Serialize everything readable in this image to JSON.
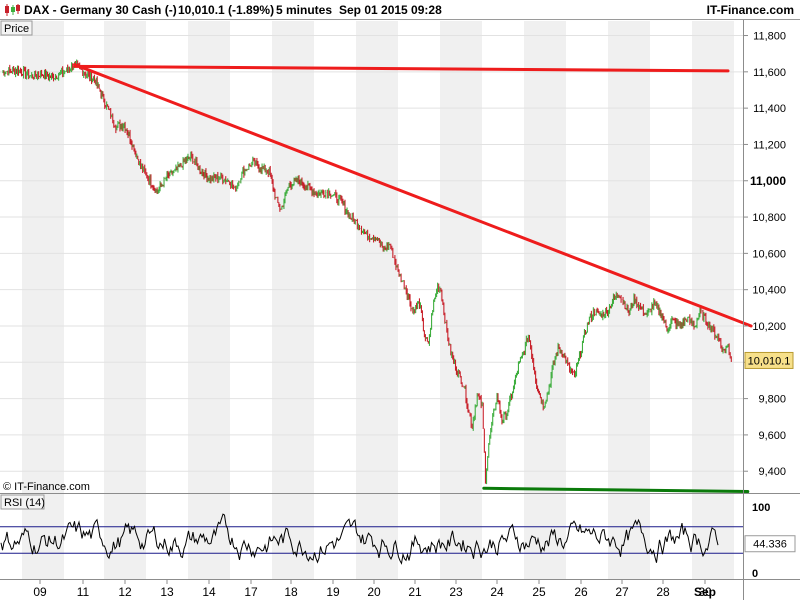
{
  "header": {
    "symbol": "DAX - Germany 30 Cash (-)",
    "price_change": "10,010.1 (-1.89%)",
    "interval": "5 minutes",
    "datetime": "Sep 01 2015 09:28",
    "brand": "IT-Finance.com"
  },
  "price_panel_label": "Price",
  "rsi_panel_label": "RSI (14)",
  "copyright": "© IT-Finance.com",
  "colors": {
    "up": "#3fae3f",
    "down": "#c8202a",
    "trendline": "#ee1c1c",
    "support": "#0a7a0a",
    "rsi_line": "#000000",
    "rsi_band": "#1a1a8a",
    "last_price_bg": "#f7e08a",
    "stripe": "#f0f0f0"
  },
  "chart_data": [
    {
      "type": "line",
      "panel": "price",
      "x_tick_labels": [
        "09",
        "11",
        "12",
        "13",
        "14",
        "17",
        "18",
        "19",
        "20",
        "21",
        "23",
        "24",
        "25",
        "26",
        "27",
        "28",
        "30",
        "Sep"
      ],
      "y_ticks": [
        9400,
        9600,
        9800,
        10000,
        10200,
        10400,
        10600,
        10800,
        11000,
        11200,
        11400,
        11600,
        11800
      ],
      "y_tick_labels": [
        "9,400",
        "9,600",
        "9,800",
        "10,000",
        "10,200",
        "10,400",
        "10,600",
        "10,800",
        "11,000",
        "11,200",
        "11,400",
        "11,600",
        "11,800"
      ],
      "bold_tick": "11,000",
      "ylim": [
        9280,
        11880
      ],
      "last_price": 10010.1,
      "last_price_label": "10,010.1",
      "price_path": [
        [
          0,
          11600
        ],
        [
          0.5,
          11610
        ],
        [
          0.9,
          11575
        ],
        [
          1.2,
          11590
        ],
        [
          1.5,
          11570
        ],
        [
          1.9,
          11600
        ],
        [
          2.2,
          11640
        ],
        [
          2.6,
          11580
        ],
        [
          2.8,
          11560
        ],
        [
          3.0,
          11480
        ],
        [
          3.2,
          11400
        ],
        [
          3.45,
          11300
        ],
        [
          3.7,
          11310
        ],
        [
          3.85,
          11250
        ],
        [
          4.0,
          11180
        ],
        [
          4.2,
          11080
        ],
        [
          4.45,
          11010
        ],
        [
          4.7,
          10940
        ],
        [
          5.0,
          11020
        ],
        [
          5.3,
          11060
        ],
        [
          5.55,
          11110
        ],
        [
          5.75,
          11130
        ],
        [
          6.0,
          11060
        ],
        [
          6.3,
          11010
        ],
        [
          6.6,
          11020
        ],
        [
          6.9,
          11000
        ],
        [
          7.05,
          10950
        ],
        [
          7.3,
          11050
        ],
        [
          7.6,
          11100
        ],
        [
          7.85,
          11070
        ],
        [
          8.1,
          11050
        ],
        [
          8.3,
          10900
        ],
        [
          8.45,
          10840
        ],
        [
          8.7,
          10980
        ],
        [
          9.0,
          11000
        ],
        [
          9.3,
          10960
        ],
        [
          9.55,
          10930
        ],
        [
          9.9,
          10940
        ],
        [
          10.3,
          10880
        ],
        [
          10.55,
          10800
        ],
        [
          10.8,
          10760
        ],
        [
          11.05,
          10700
        ],
        [
          11.35,
          10690
        ],
        [
          11.55,
          10620
        ],
        [
          11.75,
          10650
        ],
        [
          12.0,
          10500
        ],
        [
          12.25,
          10400
        ],
        [
          12.45,
          10280
        ],
        [
          12.65,
          10330
        ],
        [
          12.8,
          10150
        ],
        [
          12.92,
          10090
        ],
        [
          13.05,
          10300
        ],
        [
          13.2,
          10420
        ],
        [
          13.3,
          10400
        ],
        [
          13.45,
          10200
        ],
        [
          13.6,
          10050
        ],
        [
          13.8,
          9950
        ],
        [
          14.0,
          9870
        ],
        [
          14.15,
          9720
        ],
        [
          14.25,
          9650
        ],
        [
          14.4,
          9820
        ],
        [
          14.55,
          9760
        ],
        [
          14.65,
          9360
        ],
        [
          14.75,
          9550
        ],
        [
          14.9,
          9720
        ],
        [
          15.0,
          9820
        ],
        [
          15.15,
          9680
        ],
        [
          15.3,
          9720
        ],
        [
          15.5,
          9860
        ],
        [
          15.65,
          9980
        ],
        [
          15.8,
          10050
        ],
        [
          15.95,
          10150
        ],
        [
          16.05,
          10050
        ],
        [
          16.2,
          9880
        ],
        [
          16.4,
          9760
        ],
        [
          16.55,
          9840
        ],
        [
          16.7,
          9980
        ],
        [
          16.85,
          10080
        ],
        [
          17.0,
          10050
        ],
        [
          17.2,
          9960
        ],
        [
          17.35,
          9920
        ],
        [
          17.5,
          10030
        ],
        [
          17.65,
          10150
        ],
        [
          17.8,
          10240
        ],
        [
          17.95,
          10280
        ],
        [
          18.15,
          10260
        ],
        [
          18.35,
          10280
        ],
        [
          18.5,
          10340
        ],
        [
          18.7,
          10380
        ],
        [
          18.85,
          10330
        ],
        [
          19.0,
          10270
        ],
        [
          19.15,
          10350
        ],
        [
          19.35,
          10300
        ],
        [
          19.55,
          10260
        ],
        [
          19.75,
          10320
        ],
        [
          20.0,
          10260
        ],
        [
          20.15,
          10180
        ],
        [
          20.3,
          10230
        ],
        [
          20.55,
          10200
        ],
        [
          20.75,
          10240
        ],
        [
          21.0,
          10200
        ],
        [
          21.15,
          10280
        ],
        [
          21.3,
          10240
        ],
        [
          21.45,
          10200
        ],
        [
          21.6,
          10160
        ],
        [
          21.75,
          10120
        ],
        [
          21.85,
          10060
        ],
        [
          22.0,
          10090
        ],
        [
          22.1,
          10010
        ]
      ],
      "lines": [
        {
          "name": "resistance",
          "points": [
            [
              2.2,
              11630
            ],
            [
              22.0,
              11605
            ]
          ],
          "color": "trendline"
        },
        {
          "name": "down-trend",
          "points": [
            [
              2.2,
              11640
            ],
            [
              22.7,
              10200
            ]
          ],
          "color": "trendline"
        },
        {
          "name": "support",
          "points": [
            [
              14.6,
              9306
            ],
            [
              22.6,
              9288
            ]
          ],
          "color": "support"
        }
      ]
    },
    {
      "type": "line",
      "panel": "rsi",
      "name": "RSI (14)",
      "y_ticks": [
        0,
        100
      ],
      "y_tick_labels": [
        "0",
        "100"
      ],
      "bands": [
        30,
        70
      ],
      "ylim": [
        0,
        100
      ],
      "last_value_label": "44.336"
    }
  ]
}
